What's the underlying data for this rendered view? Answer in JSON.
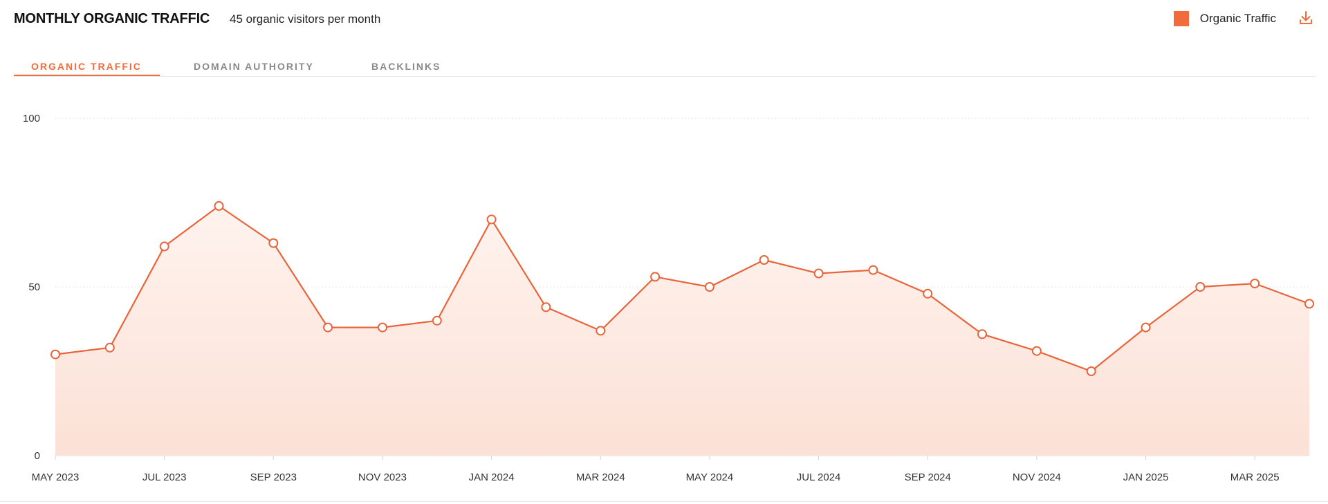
{
  "header": {
    "title": "MONTHLY ORGANIC TRAFFIC",
    "subtitle": "45 organic visitors per month",
    "legend_label": "Organic Traffic",
    "download_icon": "download-icon"
  },
  "tabs": [
    {
      "label": "ORGANIC TRAFFIC",
      "active": true
    },
    {
      "label": "DOMAIN AUTHORITY",
      "active": false
    },
    {
      "label": "BACKLINKS",
      "active": false
    }
  ],
  "colors": {
    "accent": "#f26b3a",
    "line": "#e8643a",
    "fill_top": "#fff3ee",
    "fill_bottom": "#fbe1d6",
    "grid": "#e3e3e3"
  },
  "chart_data": {
    "type": "area",
    "title": "",
    "xlabel": "",
    "ylabel": "",
    "x": [
      "2023-05",
      "2023-06",
      "2023-07",
      "2023-08",
      "2023-09",
      "2023-10",
      "2023-11",
      "2023-12",
      "2024-01",
      "2024-02",
      "2024-03",
      "2024-04",
      "2024-05",
      "2024-06",
      "2024-07",
      "2024-08",
      "2024-09",
      "2024-10",
      "2024-11",
      "2024-12",
      "2025-01",
      "2025-02",
      "2025-03",
      "2025-04"
    ],
    "x_tick_labels": [
      {
        "x": "2023-05",
        "label": "MAY 2023"
      },
      {
        "x": "2023-07",
        "label": "JUL 2023"
      },
      {
        "x": "2023-09",
        "label": "SEP 2023"
      },
      {
        "x": "2023-11",
        "label": "NOV 2023"
      },
      {
        "x": "2024-01",
        "label": "JAN 2024"
      },
      {
        "x": "2024-03",
        "label": "MAR 2024"
      },
      {
        "x": "2024-05",
        "label": "MAY 2024"
      },
      {
        "x": "2024-07",
        "label": "JUL 2024"
      },
      {
        "x": "2024-09",
        "label": "SEP 2024"
      },
      {
        "x": "2024-11",
        "label": "NOV 2024"
      },
      {
        "x": "2025-01",
        "label": "JAN 2025"
      },
      {
        "x": "2025-03",
        "label": "MAR 2025"
      }
    ],
    "series": [
      {
        "name": "Organic Traffic",
        "values": [
          30,
          32,
          62,
          74,
          63,
          38,
          38,
          40,
          70,
          44,
          37,
          53,
          50,
          58,
          54,
          55,
          48,
          36,
          31,
          25,
          38,
          50,
          51,
          45
        ]
      }
    ],
    "ylim": [
      0,
      100
    ],
    "y_ticks": [
      0,
      50,
      100
    ],
    "grid": true,
    "legend": "top-right"
  }
}
